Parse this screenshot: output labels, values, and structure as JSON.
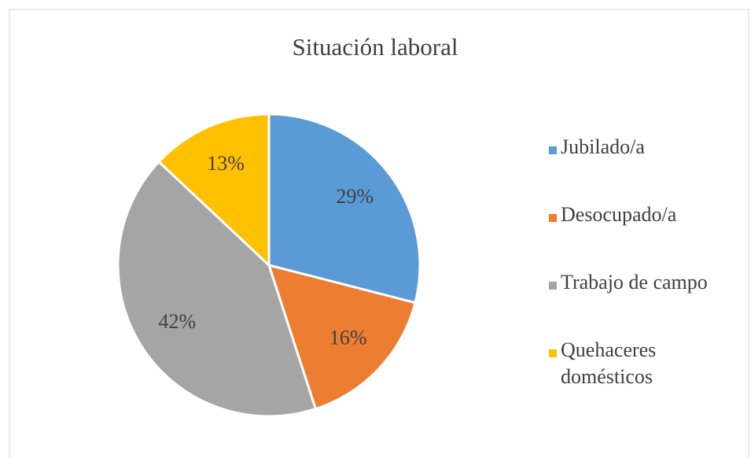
{
  "chart_data": {
    "type": "pie",
    "title": "Situación laboral",
    "categories": [
      "Jubilado/a",
      "Desocupado/a",
      "Trabajo de campo",
      "Quehaceres domésticos"
    ],
    "values": [
      29,
      16,
      42,
      13
    ],
    "value_labels": [
      "29%",
      "16%",
      "42%",
      "13%"
    ],
    "colors": [
      "#5b9bd5",
      "#ed7d31",
      "#a5a5a5",
      "#ffc000"
    ],
    "legend": "right"
  }
}
